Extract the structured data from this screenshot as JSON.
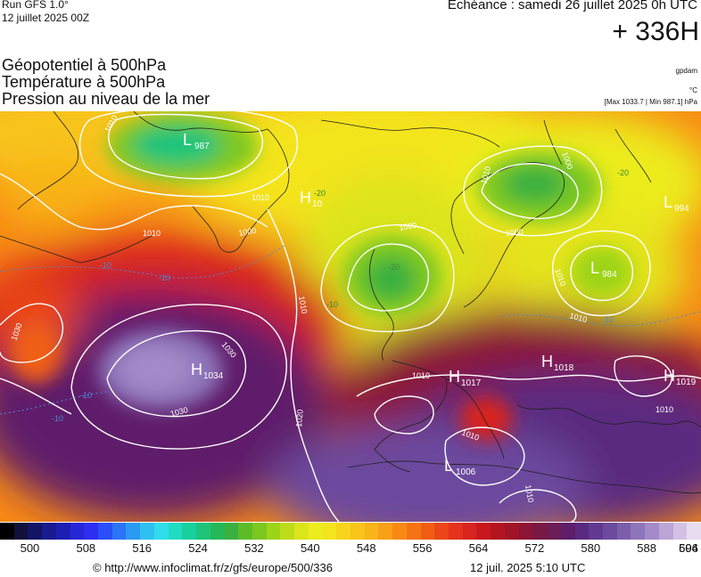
{
  "header": {
    "run_label": "Run GFS 1.0°",
    "run_date": "12 juillet 2025 00Z",
    "valid_time": "Echéance : samedi 26 juillet 2025 0h UTC",
    "lead_time": "+ 336H",
    "title_lines": [
      "Géopotentiel à 500hPa",
      "Température à 500hPa",
      "Pression au niveau de la mer"
    ],
    "unit_geopotential": "gpdam",
    "unit_temperature": "°C",
    "pressure_range": "[Max 1033.7 | Min 987.1] hPa"
  },
  "map": {
    "pressure_centers": [
      {
        "type": "L",
        "value": "987"
      },
      {
        "type": "H",
        "value": "10"
      },
      {
        "type": "L",
        "value": "994"
      },
      {
        "type": "L",
        "value": "984"
      },
      {
        "type": "H",
        "value": "1034"
      },
      {
        "type": "H",
        "value": "1018"
      },
      {
        "type": "H",
        "value": "1017"
      },
      {
        "type": "H",
        "value": "1019"
      },
      {
        "type": "L",
        "value": "1006"
      }
    ],
    "isobar_labels": [
      "1010",
      "1010",
      "1010",
      "1030",
      "1030",
      "1030",
      "1020",
      "1010",
      "1010",
      "1010",
      "1000",
      "1000",
      "1010",
      "1010",
      "1010",
      "1010",
      "1000",
      "1000",
      "1010"
    ],
    "temperature_labels": [
      "-10",
      "-10",
      "-10",
      "-10",
      "-10",
      "-20",
      "-20",
      "-20",
      "-10"
    ]
  },
  "colorbar": {
    "unit": "gpdam",
    "min": 496,
    "step": 2,
    "colors": [
      "#000000",
      "#10103a",
      "#141466",
      "#1a1a90",
      "#1e1eb4",
      "#2626d8",
      "#2e2ef2",
      "#2a4ef8",
      "#2a74f6",
      "#2a9af2",
      "#2ec0f0",
      "#30dcec",
      "#20dcc0",
      "#18d09e",
      "#1ec47a",
      "#26b858",
      "#3ab040",
      "#5cbc28",
      "#7cc820",
      "#9cd418",
      "#bedc18",
      "#dce41a",
      "#ecec1e",
      "#f4e41e",
      "#f8d41c",
      "#f8c41a",
      "#f8b418",
      "#f8a016",
      "#f88a14",
      "#f47414",
      "#f05e14",
      "#ec4618",
      "#e4321c",
      "#d8241e",
      "#c8181e",
      "#b41420",
      "#a01426",
      "#8c1434",
      "#7a1844",
      "#6c1c56",
      "#5e1e6a",
      "#5a2a80",
      "#623890",
      "#6c4a9e",
      "#7c5eac",
      "#8e74ba",
      "#a48ac8",
      "#bca4d6",
      "#d4c0e4",
      "#e8dcf0"
    ],
    "tick_labels": [
      "500",
      "508",
      "516",
      "524",
      "532",
      "540",
      "548",
      "556",
      "564",
      "572",
      "580",
      "588",
      "596",
      "604"
    ]
  },
  "footer": {
    "url": "© http://www.infoclimat.fr/z/gfs/europe/500/336",
    "timestamp": "12 juil. 2025  5:10 UTC"
  }
}
